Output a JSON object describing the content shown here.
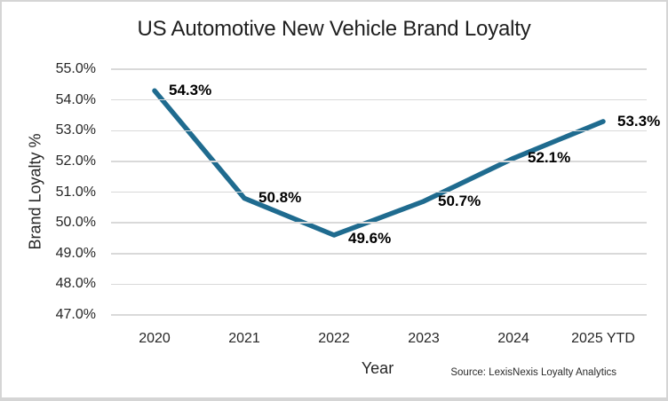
{
  "chart_data": {
    "type": "line",
    "title": "US Automotive New Vehicle Brand Loyalty",
    "xlabel": "Year",
    "ylabel": "Brand Loyalty %",
    "categories": [
      "2020",
      "2021",
      "2022",
      "2023",
      "2024",
      "2025 YTD"
    ],
    "series": [
      {
        "name": "Brand Loyalty %",
        "values": [
          54.3,
          50.8,
          49.6,
          50.7,
          52.1,
          53.3
        ],
        "point_labels": [
          "54.3%",
          "50.8%",
          "49.6%",
          "50.7%",
          "52.1%",
          "53.3%"
        ]
      }
    ],
    "ylim": [
      47.0,
      55.0
    ],
    "ytick_step": 1.0,
    "ytick_labels": [
      "55.0%",
      "54.0%",
      "53.0%",
      "52.0%",
      "51.0%",
      "50.0%",
      "49.0%",
      "48.0%",
      "47.0%"
    ],
    "grid": "horizontal",
    "legend_position": "none",
    "line_color": "#1F6B8F",
    "grid_color": "#D9D9D9",
    "text_color": "#262626",
    "source": "Source: LexisNexis Loyalty Analytics"
  }
}
